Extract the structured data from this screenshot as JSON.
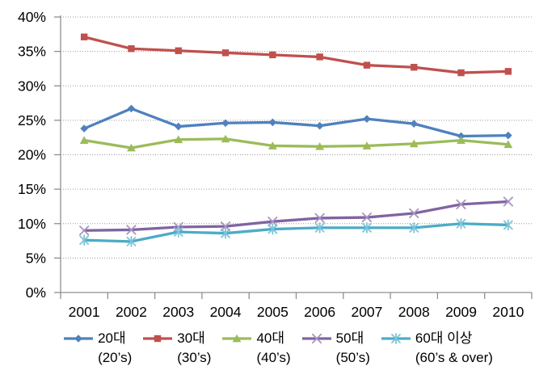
{
  "chart_data": {
    "type": "line",
    "title": "",
    "xlabel": "",
    "ylabel": "",
    "x_categories": [
      "2001",
      "2002",
      "2003",
      "2004",
      "2005",
      "2006",
      "2007",
      "2008",
      "2009",
      "2010"
    ],
    "y_axis": {
      "min": 0,
      "max": 40,
      "step": 5,
      "unit": "%",
      "tick_labels": [
        "0%",
        "5%",
        "10%",
        "15%",
        "20%",
        "25%",
        "30%",
        "35%",
        "40%"
      ]
    },
    "grid": "horizontal-dotted",
    "legend_position": "bottom",
    "series": [
      {
        "name_ko": "20대",
        "name_en": "(20’s)",
        "marker": "diamond",
        "color": "#4F81BD",
        "marker_color": "#4F81BD",
        "values": [
          23.8,
          26.7,
          24.1,
          24.6,
          24.7,
          24.2,
          25.2,
          24.5,
          22.7,
          22.8
        ]
      },
      {
        "name_ko": "30대",
        "name_en": "(30’s)",
        "marker": "square",
        "color": "#C0504D",
        "marker_color": "#C0504D",
        "values": [
          37.1,
          35.4,
          35.1,
          34.8,
          34.5,
          34.2,
          33.0,
          32.7,
          31.9,
          32.1
        ]
      },
      {
        "name_ko": "40대",
        "name_en": "(40’s)",
        "marker": "triangle",
        "color": "#9BBB59",
        "marker_color": "#9BBB59",
        "values": [
          22.1,
          21.0,
          22.2,
          22.3,
          21.3,
          21.2,
          21.3,
          21.6,
          22.1,
          21.5
        ]
      },
      {
        "name_ko": "50대",
        "name_en": "(50’s)",
        "marker": "x",
        "color": "#8064A2",
        "marker_color": "#A795C1",
        "values": [
          9.0,
          9.1,
          9.5,
          9.6,
          10.3,
          10.8,
          10.9,
          11.5,
          12.8,
          13.2
        ]
      },
      {
        "name_ko": "60대 이상",
        "name_en": "(60’s & over)",
        "marker": "asterisk",
        "color": "#4BACC6",
        "marker_color": "#7EC4D8",
        "values": [
          7.6,
          7.4,
          8.8,
          8.6,
          9.2,
          9.4,
          9.4,
          9.4,
          10.0,
          9.8
        ]
      }
    ],
    "colors": {
      "axis": "#8E8E8E",
      "gridline": "#999999",
      "text": "#000000",
      "background": "#FFFFFF"
    }
  }
}
